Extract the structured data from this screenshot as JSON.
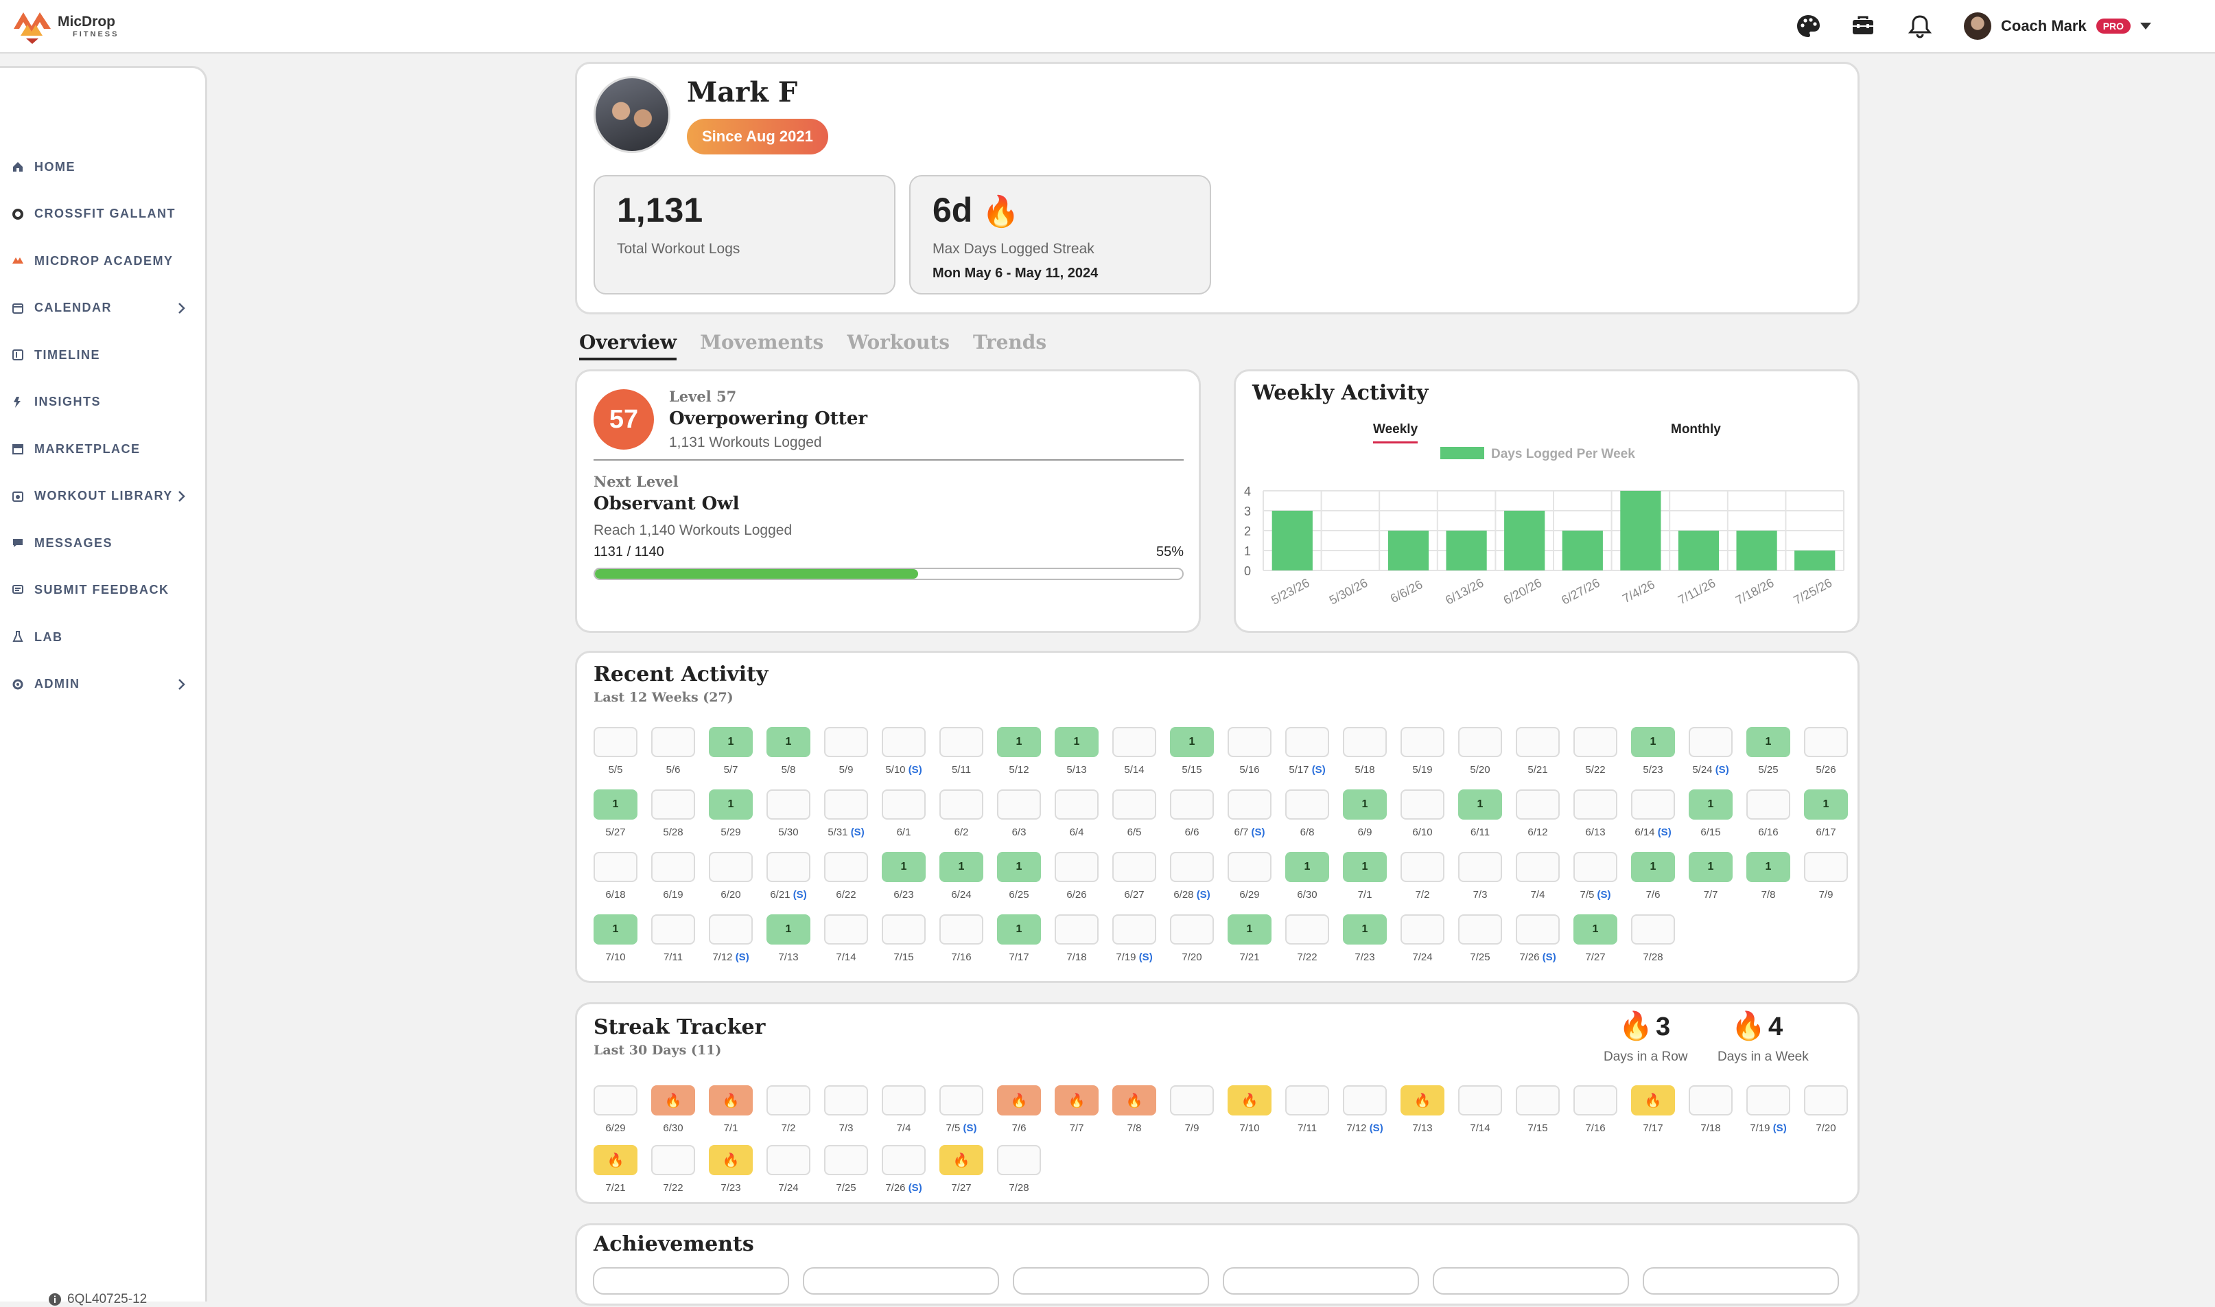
{
  "brand": {
    "name": "MicDrop",
    "tagline": "FITNESS"
  },
  "header": {
    "user_name": "Coach Mark",
    "badge": "PRO",
    "icons": [
      "palette-icon",
      "toolbox-icon",
      "bell-icon"
    ]
  },
  "sidebar": {
    "items": [
      {
        "label": "HOME",
        "icon": "home-icon",
        "chevron": false
      },
      {
        "label": "CROSSFIT GALLANT",
        "icon": "gym-logo-icon",
        "chevron": false
      },
      {
        "label": "MICDROP ACADEMY",
        "icon": "academy-logo-icon",
        "chevron": false
      },
      {
        "label": "CALENDAR",
        "icon": "calendar-icon",
        "chevron": true
      },
      {
        "label": "TIMELINE",
        "icon": "timeline-icon",
        "chevron": false
      },
      {
        "label": "INSIGHTS",
        "icon": "insights-icon",
        "chevron": false
      },
      {
        "label": "MARKETPLACE",
        "icon": "store-icon",
        "chevron": false
      },
      {
        "label": "WORKOUT LIBRARY",
        "icon": "library-icon",
        "chevron": true
      },
      {
        "label": "MESSAGES",
        "icon": "messages-icon",
        "chevron": false
      },
      {
        "label": "SUBMIT FEEDBACK",
        "icon": "feedback-icon",
        "chevron": false
      },
      {
        "label": "LAB",
        "icon": "flask-icon",
        "chevron": false
      },
      {
        "label": "ADMIN",
        "icon": "gear-icon",
        "chevron": true
      }
    ],
    "version": "6QL40725-12"
  },
  "profile": {
    "name": "Mark F",
    "since": "Since Aug 2021",
    "stats": [
      {
        "value": "1,131",
        "label": "Total Workout Logs",
        "sub": ""
      },
      {
        "value": "6d",
        "label": "Max Days Logged Streak",
        "sub": "Mon May 6 - May 11, 2024"
      }
    ]
  },
  "tabs": [
    "Overview",
    "Movements",
    "Workouts",
    "Trends"
  ],
  "level": {
    "number": "57",
    "level_label": "Level 57",
    "title": "Overpowering Otter",
    "logged": "1,131 Workouts Logged",
    "next_label": "Next Level",
    "next_title": "Observant Owl",
    "next_req": "Reach 1,140 Workouts Logged",
    "progress_text": "1131 / 1140",
    "progress_pct": "55%",
    "progress_fraction": 0.55
  },
  "weekly": {
    "title": "Weekly Activity",
    "toggle": [
      "Weekly",
      "Monthly"
    ],
    "chart_data": {
      "type": "bar",
      "series": [
        {
          "name": "Days Logged Per Week",
          "values": [
            3,
            0,
            2,
            2,
            3,
            2,
            4,
            2,
            2,
            1
          ]
        }
      ],
      "categories": [
        "5/23/26",
        "5/30/26",
        "6/6/26",
        "6/13/26",
        "6/20/26",
        "6/27/26",
        "7/4/26",
        "7/11/26",
        "7/18/26",
        "7/25/26"
      ],
      "yticks": [
        "4",
        "3",
        "2",
        "1",
        "0"
      ],
      "ylim": [
        0,
        4
      ],
      "color": "#5cc878"
    }
  },
  "recent": {
    "title": "Recent Activity",
    "subtitle": "Last 12 Weeks (27)",
    "days": [
      {
        "d": "5/5",
        "v": ""
      },
      {
        "d": "5/6",
        "v": ""
      },
      {
        "d": "5/7",
        "v": "1"
      },
      {
        "d": "5/8",
        "v": "1"
      },
      {
        "d": "5/9",
        "v": ""
      },
      {
        "d": "5/10",
        "v": "",
        "s": "(S)"
      },
      {
        "d": "5/11",
        "v": ""
      },
      {
        "d": "5/12",
        "v": "1"
      },
      {
        "d": "5/13",
        "v": "1"
      },
      {
        "d": "5/14",
        "v": ""
      },
      {
        "d": "5/15",
        "v": "1"
      },
      {
        "d": "5/16",
        "v": ""
      },
      {
        "d": "5/17",
        "v": "",
        "s": "(S)"
      },
      {
        "d": "5/18",
        "v": ""
      },
      {
        "d": "5/19",
        "v": ""
      },
      {
        "d": "5/20",
        "v": ""
      },
      {
        "d": "5/21",
        "v": ""
      },
      {
        "d": "5/22",
        "v": ""
      },
      {
        "d": "5/23",
        "v": "1"
      },
      {
        "d": "5/24",
        "v": "",
        "s": "(S)"
      },
      {
        "d": "5/25",
        "v": "1"
      },
      {
        "d": "5/26",
        "v": ""
      },
      {
        "d": "5/27",
        "v": "1"
      },
      {
        "d": "5/28",
        "v": ""
      },
      {
        "d": "5/29",
        "v": "1"
      },
      {
        "d": "5/30",
        "v": ""
      },
      {
        "d": "5/31",
        "v": "",
        "s": "(S)"
      },
      {
        "d": "6/1",
        "v": ""
      },
      {
        "d": "6/2",
        "v": ""
      },
      {
        "d": "6/3",
        "v": ""
      },
      {
        "d": "6/4",
        "v": ""
      },
      {
        "d": "6/5",
        "v": ""
      },
      {
        "d": "6/6",
        "v": ""
      },
      {
        "d": "6/7",
        "v": "",
        "s": "(S)"
      },
      {
        "d": "6/8",
        "v": ""
      },
      {
        "d": "6/9",
        "v": "1"
      },
      {
        "d": "6/10",
        "v": ""
      },
      {
        "d": "6/11",
        "v": "1"
      },
      {
        "d": "6/12",
        "v": ""
      },
      {
        "d": "6/13",
        "v": ""
      },
      {
        "d": "6/14",
        "v": "",
        "s": "(S)"
      },
      {
        "d": "6/15",
        "v": "1"
      },
      {
        "d": "6/16",
        "v": ""
      },
      {
        "d": "6/17",
        "v": "1"
      },
      {
        "d": "6/18",
        "v": ""
      },
      {
        "d": "6/19",
        "v": ""
      },
      {
        "d": "6/20",
        "v": ""
      },
      {
        "d": "6/21",
        "v": "",
        "s": "(S)"
      },
      {
        "d": "6/22",
        "v": ""
      },
      {
        "d": "6/23",
        "v": "1"
      },
      {
        "d": "6/24",
        "v": "1"
      },
      {
        "d": "6/25",
        "v": "1"
      },
      {
        "d": "6/26",
        "v": ""
      },
      {
        "d": "6/27",
        "v": ""
      },
      {
        "d": "6/28",
        "v": "",
        "s": "(S)"
      },
      {
        "d": "6/29",
        "v": ""
      },
      {
        "d": "6/30",
        "v": "1"
      },
      {
        "d": "7/1",
        "v": "1"
      },
      {
        "d": "7/2",
        "v": ""
      },
      {
        "d": "7/3",
        "v": ""
      },
      {
        "d": "7/4",
        "v": ""
      },
      {
        "d": "7/5",
        "v": "",
        "s": "(S)"
      },
      {
        "d": "7/6",
        "v": "1"
      },
      {
        "d": "7/7",
        "v": "1"
      },
      {
        "d": "7/8",
        "v": "1"
      },
      {
        "d": "7/9",
        "v": ""
      },
      {
        "d": "7/10",
        "v": "1"
      },
      {
        "d": "7/11",
        "v": ""
      },
      {
        "d": "7/12",
        "v": "",
        "s": "(S)"
      },
      {
        "d": "7/13",
        "v": "1"
      },
      {
        "d": "7/14",
        "v": ""
      },
      {
        "d": "7/15",
        "v": ""
      },
      {
        "d": "7/16",
        "v": ""
      },
      {
        "d": "7/17",
        "v": "1"
      },
      {
        "d": "7/18",
        "v": ""
      },
      {
        "d": "7/19",
        "v": "",
        "s": "(S)"
      },
      {
        "d": "7/20",
        "v": ""
      },
      {
        "d": "7/21",
        "v": "1"
      },
      {
        "d": "7/22",
        "v": ""
      },
      {
        "d": "7/23",
        "v": "1"
      },
      {
        "d": "7/24",
        "v": ""
      },
      {
        "d": "7/25",
        "v": ""
      },
      {
        "d": "7/26",
        "v": "",
        "s": "(S)"
      },
      {
        "d": "7/27",
        "v": "1"
      },
      {
        "d": "7/28",
        "v": ""
      }
    ]
  },
  "streak": {
    "title": "Streak Tracker",
    "subtitle": "Last 30 Days (11)",
    "row_count": "3",
    "row_label": "Days in a Row",
    "week_count": "4",
    "week_label": "Days in a Week",
    "days": [
      {
        "d": "6/29",
        "c": ""
      },
      {
        "d": "6/30",
        "c": "o"
      },
      {
        "d": "7/1",
        "c": "o"
      },
      {
        "d": "7/2",
        "c": ""
      },
      {
        "d": "7/3",
        "c": ""
      },
      {
        "d": "7/4",
        "c": ""
      },
      {
        "d": "7/5",
        "c": "",
        "s": "(S)"
      },
      {
        "d": "7/6",
        "c": "o"
      },
      {
        "d": "7/7",
        "c": "o"
      },
      {
        "d": "7/8",
        "c": "o"
      },
      {
        "d": "7/9",
        "c": ""
      },
      {
        "d": "7/10",
        "c": "y"
      },
      {
        "d": "7/11",
        "c": ""
      },
      {
        "d": "7/12",
        "c": "",
        "s": "(S)"
      },
      {
        "d": "7/13",
        "c": "y"
      },
      {
        "d": "7/14",
        "c": ""
      },
      {
        "d": "7/15",
        "c": ""
      },
      {
        "d": "7/16",
        "c": ""
      },
      {
        "d": "7/17",
        "c": "y"
      },
      {
        "d": "7/18",
        "c": ""
      },
      {
        "d": "7/19",
        "c": "",
        "s": "(S)"
      },
      {
        "d": "7/20",
        "c": ""
      },
      {
        "d": "7/21",
        "c": "y"
      },
      {
        "d": "7/22",
        "c": ""
      },
      {
        "d": "7/23",
        "c": "y"
      },
      {
        "d": "7/24",
        "c": ""
      },
      {
        "d": "7/25",
        "c": ""
      },
      {
        "d": "7/26",
        "c": "",
        "s": "(S)"
      },
      {
        "d": "7/27",
        "c": "y"
      },
      {
        "d": "7/28",
        "c": ""
      }
    ]
  },
  "achievements": {
    "title": "Achievements"
  }
}
